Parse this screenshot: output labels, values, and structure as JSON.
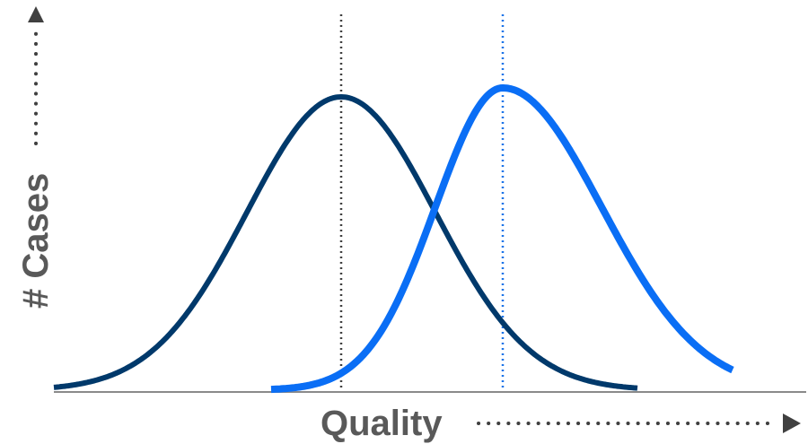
{
  "chart_data": {
    "type": "line",
    "xlabel": "Quality",
    "ylabel": "# Cases",
    "grid": false,
    "series": [
      {
        "color": "#00396b",
        "distribution": "normal",
        "mean": 380,
        "sd": 105,
        "peak": 327,
        "x_range": [
          60,
          710
        ]
      },
      {
        "color": "#0a6ef5",
        "distribution": "skewed-normal",
        "mean": 560,
        "sd_left": 75,
        "sd_right": 110,
        "peak": 337,
        "x_range": [
          302,
          817
        ]
      }
    ],
    "markers": [
      {
        "x": 380,
        "color": "#404040",
        "style": "dotted"
      },
      {
        "x": 560,
        "color": "#1a73e8",
        "style": "dotted"
      }
    ],
    "colors": {
      "axis": "#8a8a8a",
      "arrow": "#404040",
      "label": "#595959"
    }
  }
}
